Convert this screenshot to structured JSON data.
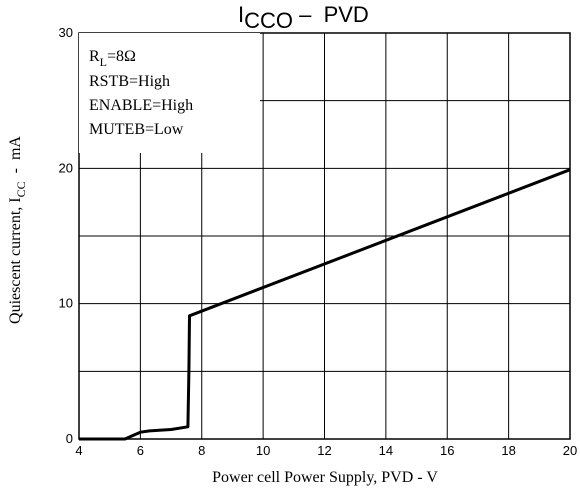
{
  "chart_data": {
    "type": "line",
    "title_main": "I",
    "title_sub": "CCO",
    "title_rest": " –  PVD",
    "xlabel": "Power cell Power Supply, PVD - V",
    "ylabel_main": "Quiescent current, I",
    "ylabel_sub": "CC",
    "ylabel_rest": "  -  mA",
    "xlim": [
      4,
      20
    ],
    "ylim": [
      0,
      30
    ],
    "x_ticks": [
      4,
      6,
      8,
      10,
      12,
      14,
      16,
      18,
      20
    ],
    "y_ticks": [
      0,
      10,
      20,
      30
    ],
    "grid": true,
    "annotations": [
      "R",
      "L",
      "=8Ω",
      "RSTB=High",
      "ENABLE=High",
      "MUTEB=Low"
    ],
    "series": [
      {
        "x": [
          4.0,
          5.5,
          5.7,
          6.0,
          6.3,
          7.0,
          7.55,
          7.58,
          7.6,
          20.0
        ],
        "y": [
          0.0,
          0.0,
          0.2,
          0.5,
          0.6,
          0.7,
          0.9,
          5.0,
          9.1,
          19.9
        ]
      }
    ],
    "line_color": "#000000"
  }
}
